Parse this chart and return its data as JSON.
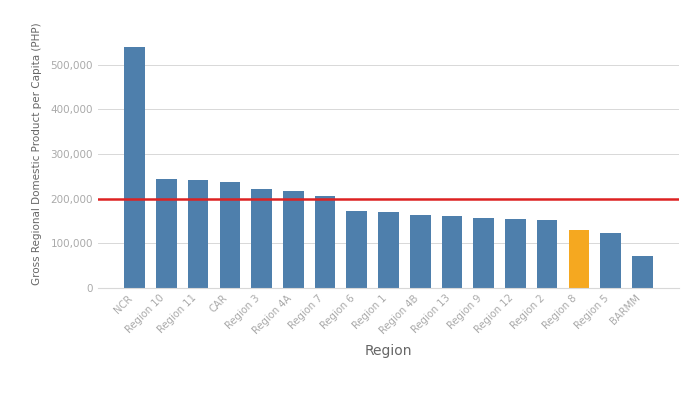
{
  "categories": [
    "NCR",
    "Region 10",
    "Region 11",
    "CAR",
    "Region 3",
    "Region 4A",
    "Region 7",
    "Region 6",
    "Region 1",
    "Region 4B",
    "Region 13",
    "Region 9",
    "Region 12",
    "Region 2",
    "Region 8",
    "Region 5",
    "BARMM"
  ],
  "values": [
    540000,
    243000,
    242000,
    237000,
    222000,
    218000,
    207000,
    172000,
    170000,
    163000,
    161000,
    156000,
    154000,
    153000,
    130000,
    123000,
    72000
  ],
  "bar_colors": [
    "#4e7fac",
    "#4e7fac",
    "#4e7fac",
    "#4e7fac",
    "#4e7fac",
    "#4e7fac",
    "#4e7fac",
    "#4e7fac",
    "#4e7fac",
    "#4e7fac",
    "#4e7fac",
    "#4e7fac",
    "#4e7fac",
    "#4e7fac",
    "#f5a820",
    "#4e7fac",
    "#4e7fac"
  ],
  "red_line_value": 200000,
  "xlabel": "Region",
  "ylabel": "Gross Regional Domestic Product per Capita (PHP)",
  "ylim": [
    0,
    600000
  ],
  "yticks": [
    0,
    100000,
    200000,
    300000,
    400000,
    500000
  ],
  "background_color": "#ffffff",
  "red_line_color": "#dd2222",
  "grid_color": "#d8d8d8",
  "tick_label_color": "#aaaaaa",
  "axis_label_color": "#666666"
}
